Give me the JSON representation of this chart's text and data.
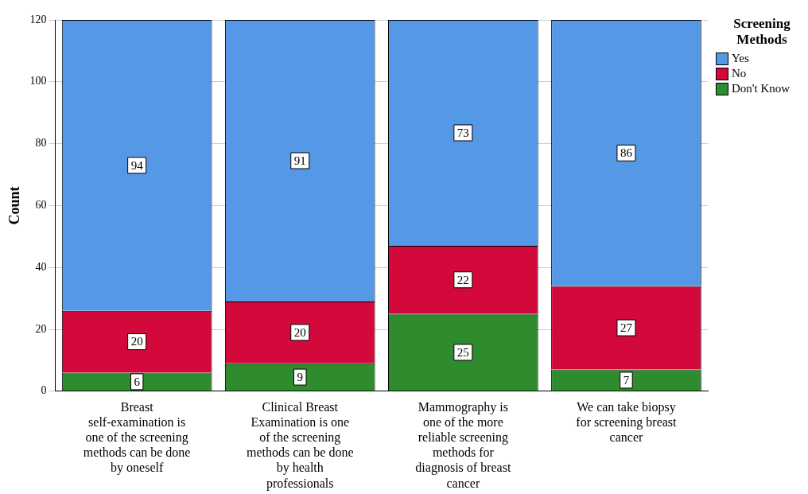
{
  "chart_data": {
    "type": "bar",
    "stacked": true,
    "ylabel": "Count",
    "legend_title": "Screening Methods",
    "legend": "top right",
    "grid": "y",
    "data_labels": true,
    "categories": [
      "Breast self-examination is one of the screening methods can be done by oneself",
      "Clinical Breast Examination is one of the screening methods can be done by health professionals",
      "Mammography is one of the more reliable screening methods for diagnosis of breast cancer",
      "We can take biopsy for screening breast cancer"
    ],
    "ylim": [
      0,
      120
    ],
    "yticks": [
      0,
      20,
      40,
      60,
      80,
      100,
      120
    ],
    "series": [
      {
        "name": "Don't Know",
        "color": "#2e8b2e",
        "values": [
          6,
          9,
          25,
          7
        ]
      },
      {
        "name": "No",
        "color": "#d2093a",
        "values": [
          20,
          20,
          22,
          27
        ]
      },
      {
        "name": "Yes",
        "color": "#5598e6",
        "values": [
          94,
          91,
          73,
          86
        ]
      }
    ]
  }
}
